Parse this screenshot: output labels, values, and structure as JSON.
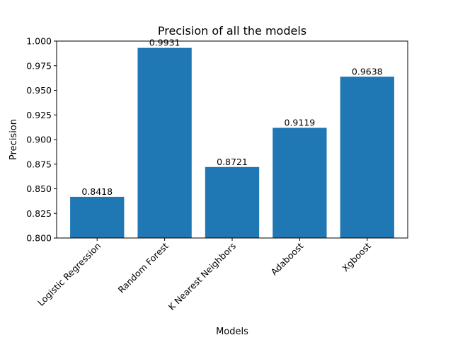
{
  "chart_data": {
    "type": "bar",
    "title": "Precision of all the models",
    "xlabel": "Models",
    "ylabel": "Precision",
    "categories": [
      "Logistic Regression",
      "Random Forest",
      "K Nearest Neighbors",
      "Adaboost",
      "Xgboost"
    ],
    "values": [
      0.8418,
      0.9931,
      0.8721,
      0.9119,
      0.9638
    ],
    "data_labels": [
      "0.8418",
      "0.9931",
      "0.8721",
      "0.9119",
      "0.9638"
    ],
    "ylim": [
      0.8,
      1.0
    ],
    "yticks": [
      "0.800",
      "0.825",
      "0.850",
      "0.875",
      "0.900",
      "0.925",
      "0.950",
      "0.975",
      "1.000"
    ],
    "grid": false,
    "bar_color": "#1f77b4"
  }
}
